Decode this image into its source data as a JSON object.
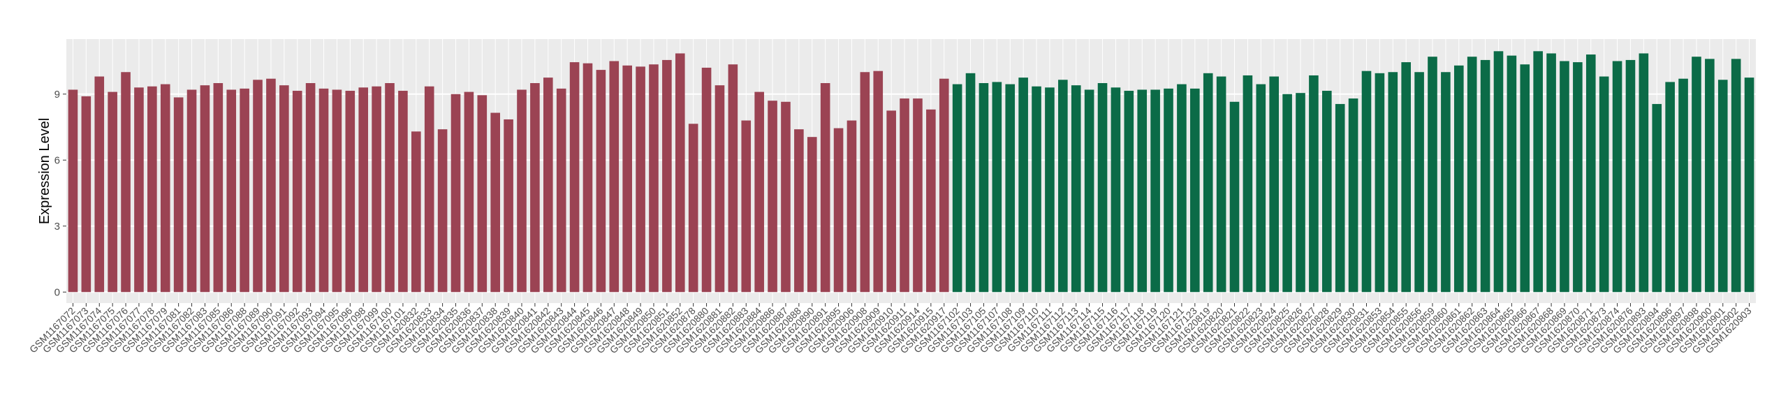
{
  "chart_data": {
    "type": "bar",
    "y_label": "Expression Level",
    "ylim": [
      -0.5,
      11.5
    ],
    "yticks": [
      0,
      3,
      6,
      9
    ],
    "grid": true,
    "series": [
      {
        "color": "#9b4353",
        "categories": [
          "GSM1167072",
          "GSM1167073",
          "GSM1167074",
          "GSM1167075",
          "GSM1167076",
          "GSM1167077",
          "GSM1167078",
          "GSM1167079",
          "GSM1167081",
          "GSM1167082",
          "GSM1167083",
          "GSM1167085",
          "GSM1167086",
          "GSM1167088",
          "GSM1167089",
          "GSM1167090",
          "GSM1167091",
          "GSM1167092",
          "GSM1167093",
          "GSM1167094",
          "GSM1167095",
          "GSM1167096",
          "GSM1167098",
          "GSM1167099",
          "GSM1167100",
          "GSM1167101",
          "GSM1620832",
          "GSM1620833",
          "GSM1620834",
          "GSM1620835",
          "GSM1620836",
          "GSM1620837",
          "GSM1620838",
          "GSM1620839",
          "GSM1620840",
          "GSM1620841",
          "GSM1620842",
          "GSM1620843",
          "GSM1620844",
          "GSM1620845",
          "GSM1620846",
          "GSM1620847",
          "GSM1620848",
          "GSM1620849",
          "GSM1620850",
          "GSM1620851",
          "GSM1620852",
          "GSM1620878",
          "GSM1620880",
          "GSM1620881",
          "GSM1620882",
          "GSM1620883",
          "GSM1620884",
          "GSM1620886",
          "GSM1620887",
          "GSM1620888",
          "GSM1620890",
          "GSM1620891",
          "GSM1620895",
          "GSM1620906",
          "GSM1620908",
          "GSM1620909",
          "GSM1620910",
          "GSM1620911",
          "GSM1620914",
          "GSM1620915",
          "GSM1620917"
        ],
        "values": [
          9.2,
          8.9,
          9.8,
          9.1,
          10.0,
          9.3,
          9.35,
          9.45,
          8.85,
          9.2,
          9.4,
          9.5,
          9.2,
          9.25,
          9.65,
          9.7,
          9.4,
          9.15,
          9.5,
          9.25,
          9.2,
          9.15,
          9.3,
          9.35,
          9.5,
          9.15,
          7.3,
          9.35,
          7.4,
          9.0,
          9.1,
          8.95,
          8.15,
          7.85,
          9.2,
          9.5,
          9.75,
          9.25,
          10.45,
          10.4,
          10.1,
          10.5,
          10.3,
          10.25,
          10.35,
          10.55,
          10.85,
          7.65,
          10.2,
          9.4,
          10.35,
          7.8,
          9.1,
          8.7,
          8.65,
          7.4,
          7.05,
          9.5,
          7.45,
          7.8,
          10.0,
          10.05,
          8.25,
          8.8,
          8.8,
          8.3,
          9.7
        ]
      },
      {
        "color": "#0b6b47",
        "categories": [
          "GSM1167102",
          "GSM1167103",
          "GSM1167105",
          "GSM1167107",
          "GSM1167108",
          "GSM1167109",
          "GSM1167110",
          "GSM1167111",
          "GSM1167112",
          "GSM1167113",
          "GSM1167114",
          "GSM1167115",
          "GSM1167116",
          "GSM1167117",
          "GSM1167118",
          "GSM1167119",
          "GSM1167120",
          "GSM1167121",
          "GSM1167123",
          "GSM1620819",
          "GSM1620820",
          "GSM1620821",
          "GSM1620822",
          "GSM1620823",
          "GSM1620824",
          "GSM1620825",
          "GSM1620826",
          "GSM1620827",
          "GSM1620828",
          "GSM1620829",
          "GSM1620830",
          "GSM1620831",
          "GSM1620853",
          "GSM1620854",
          "GSM1620855",
          "GSM1620856",
          "GSM1620859",
          "GSM1620860",
          "GSM1620861",
          "GSM1620862",
          "GSM1620863",
          "GSM1620864",
          "GSM1620865",
          "GSM1620866",
          "GSM1620867",
          "GSM1620868",
          "GSM1620869",
          "GSM1620870",
          "GSM1620871",
          "GSM1620873",
          "GSM1620874",
          "GSM1620876",
          "GSM1620893",
          "GSM1620894",
          "GSM1620896",
          "GSM1620897",
          "GSM1620898",
          "GSM1620900",
          "GSM1620901",
          "GSM1620902",
          "GSM1620903"
        ],
        "values": [
          9.45,
          9.95,
          9.5,
          9.55,
          9.45,
          9.75,
          9.35,
          9.3,
          9.65,
          9.4,
          9.2,
          9.5,
          9.3,
          9.15,
          9.2,
          9.2,
          9.25,
          9.45,
          9.25,
          9.95,
          9.8,
          8.65,
          9.85,
          9.45,
          9.8,
          9.0,
          9.05,
          9.85,
          9.15,
          8.55,
          8.8,
          10.05,
          9.95,
          10.0,
          10.45,
          10.0,
          10.7,
          10.0,
          10.3,
          10.7,
          10.55,
          10.95,
          10.75,
          10.35,
          10.95,
          10.85,
          10.5,
          10.45,
          10.8,
          9.8,
          10.5,
          10.55,
          10.85,
          8.55,
          9.55,
          9.7,
          10.7,
          10.6,
          9.65,
          10.6,
          9.75
        ]
      }
    ]
  }
}
